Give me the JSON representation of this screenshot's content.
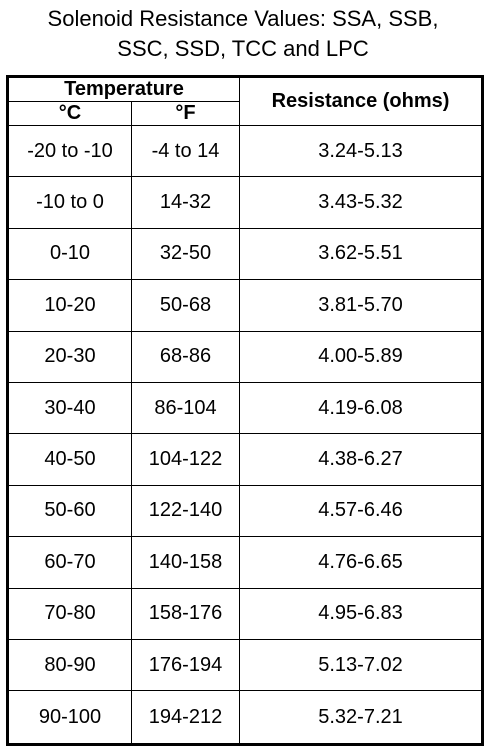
{
  "header": {
    "title_lines": [
      "Solenoid Resistance Values: SSA, SSB,",
      "SSC, SSD, TCC and LPC"
    ]
  },
  "table": {
    "group_header": "Temperature",
    "columns": [
      "°C",
      "°F",
      "Resistance (ohms)"
    ],
    "rows": [
      [
        "-20 to -10",
        "-4 to 14",
        "3.24-5.13"
      ],
      [
        "-10 to 0",
        "14-32",
        "3.43-5.32"
      ],
      [
        "0-10",
        "32-50",
        "3.62-5.51"
      ],
      [
        "10-20",
        "50-68",
        "3.81-5.70"
      ],
      [
        "20-30",
        "68-86",
        "4.00-5.89"
      ],
      [
        "30-40",
        "86-104",
        "4.19-6.08"
      ],
      [
        "40-50",
        "104-122",
        "4.38-6.27"
      ],
      [
        "50-60",
        "122-140",
        "4.57-6.46"
      ],
      [
        "60-70",
        "140-158",
        "4.76-6.65"
      ],
      [
        "70-80",
        "158-176",
        "4.95-6.83"
      ],
      [
        "80-90",
        "176-194",
        "5.13-7.02"
      ],
      [
        "90-100",
        "194-212",
        "5.32-7.21"
      ]
    ]
  }
}
